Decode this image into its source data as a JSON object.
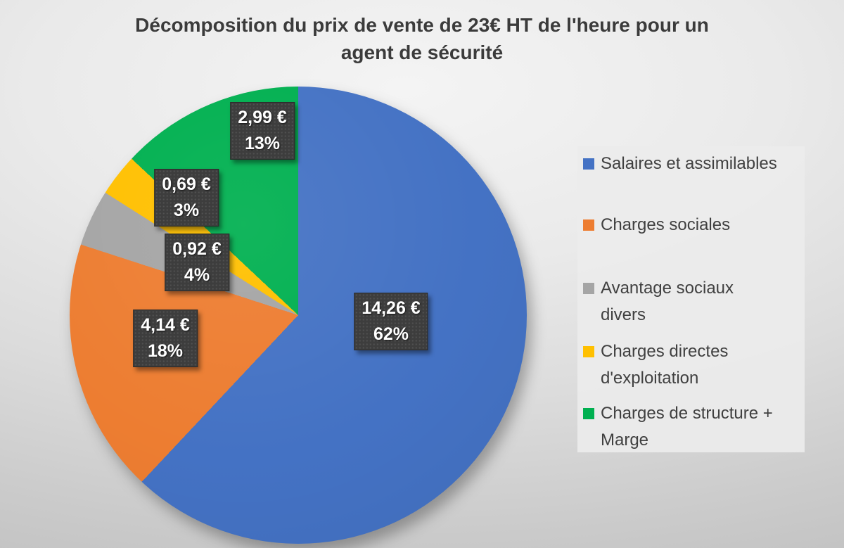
{
  "title": {
    "text": "Décomposition du prix de vente de 23€ HT de l'heure pour un\nagent de sécurité"
  },
  "chart_data": {
    "type": "pie",
    "title": "Décomposition du prix de vente de 23€ HT de l'heure pour un agent de sécurité",
    "currency": "EUR",
    "total_label": "23€ HT",
    "start_angle_deg": 0,
    "direction": "clockwise",
    "legend_position": "right",
    "data_labels": "value_and_percent",
    "slices": [
      {
        "label": "Salaires et assimilables",
        "value_eur": 14.26,
        "percent": 62,
        "value_label": "14,26 €",
        "percent_label": "62%",
        "color": "#4472C4"
      },
      {
        "label": "Charges sociales",
        "value_eur": 4.14,
        "percent": 18,
        "value_label": "4,14 €",
        "percent_label": "18%",
        "color": "#ED7D31"
      },
      {
        "label": "Avantage sociaux divers",
        "value_eur": 0.92,
        "percent": 4,
        "value_label": "0,92 €",
        "percent_label": "4%",
        "color": "#A5A5A5"
      },
      {
        "label": "Charges directes d'exploitation",
        "value_eur": 0.69,
        "percent": 3,
        "value_label": "0,69 €",
        "percent_label": "3%",
        "color": "#FFC000"
      },
      {
        "label": "Charges de structure + Marge",
        "value_eur": 2.99,
        "percent": 13,
        "value_label": "2,99 €",
        "percent_label": "13%",
        "color": "#00B050"
      }
    ]
  },
  "legend": {
    "items": [
      {
        "label": "Salaires et assimilables"
      },
      {
        "label": "Charges sociales"
      },
      {
        "label": "Avantage sociaux\ndivers"
      },
      {
        "label": "Charges directes\nd'exploitation"
      },
      {
        "label": "Charges de structure +\nMarge"
      }
    ]
  }
}
